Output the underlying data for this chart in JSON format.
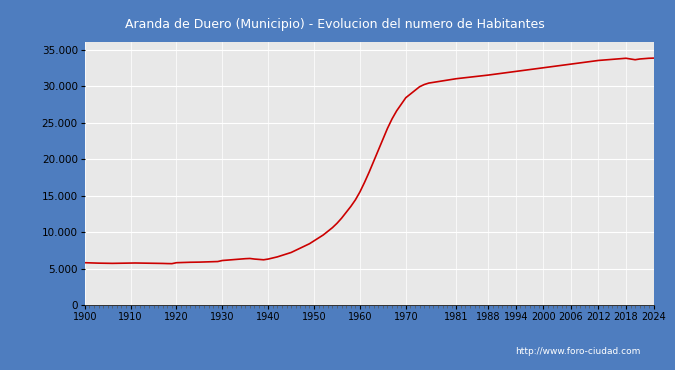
{
  "title": "Aranda de Duero (Municipio) - Evolucion del numero de Habitantes",
  "title_bg": "#4e7dbf",
  "title_color": "white",
  "footer_text": "http://www.foro-ciudad.com",
  "footer_bg": "#4e7dbf",
  "plot_bg": "#e8e8e8",
  "line_color": "#cc0000",
  "line_width": 1.2,
  "ylim": [
    0,
    36000
  ],
  "yticks": [
    0,
    5000,
    10000,
    15000,
    20000,
    25000,
    30000,
    35000
  ],
  "xtick_positions": [
    1900,
    1910,
    1920,
    1930,
    1940,
    1950,
    1960,
    1970,
    1981,
    1988,
    1994,
    2000,
    2006,
    2012,
    2018,
    2024
  ],
  "years": [
    1900,
    1901,
    1902,
    1903,
    1904,
    1905,
    1906,
    1907,
    1908,
    1909,
    1910,
    1911,
    1912,
    1913,
    1914,
    1915,
    1916,
    1917,
    1918,
    1919,
    1920,
    1921,
    1922,
    1923,
    1924,
    1925,
    1926,
    1927,
    1928,
    1929,
    1930,
    1931,
    1932,
    1933,
    1934,
    1935,
    1936,
    1937,
    1938,
    1939,
    1940,
    1941,
    1942,
    1943,
    1944,
    1945,
    1946,
    1947,
    1948,
    1949,
    1950,
    1951,
    1952,
    1953,
    1954,
    1955,
    1956,
    1957,
    1958,
    1959,
    1960,
    1961,
    1962,
    1963,
    1964,
    1965,
    1966,
    1967,
    1968,
    1969,
    1970,
    1971,
    1972,
    1973,
    1974,
    1975,
    1976,
    1977,
    1978,
    1979,
    1981,
    1988,
    1994,
    2000,
    2006,
    2012,
    2018,
    2019,
    2020,
    2021,
    2022,
    2023,
    2024
  ],
  "population": [
    5800,
    5780,
    5760,
    5740,
    5730,
    5720,
    5710,
    5720,
    5730,
    5740,
    5750,
    5760,
    5750,
    5740,
    5730,
    5720,
    5710,
    5700,
    5680,
    5670,
    5800,
    5820,
    5840,
    5860,
    5870,
    5880,
    5900,
    5920,
    5940,
    5960,
    6100,
    6150,
    6200,
    6250,
    6300,
    6350,
    6380,
    6300,
    6250,
    6200,
    6300,
    6450,
    6600,
    6800,
    7000,
    7200,
    7500,
    7800,
    8100,
    8400,
    8800,
    9200,
    9600,
    10100,
    10600,
    11200,
    11900,
    12700,
    13500,
    14400,
    15500,
    16800,
    18200,
    19700,
    21200,
    22700,
    24200,
    25500,
    26600,
    27500,
    28400,
    28900,
    29400,
    29900,
    30200,
    30400,
    30500,
    30600,
    30700,
    30800,
    31000,
    31500,
    32000,
    32500,
    33000,
    33500,
    33800,
    33700,
    33600,
    33700,
    33750,
    33800,
    33820
  ]
}
